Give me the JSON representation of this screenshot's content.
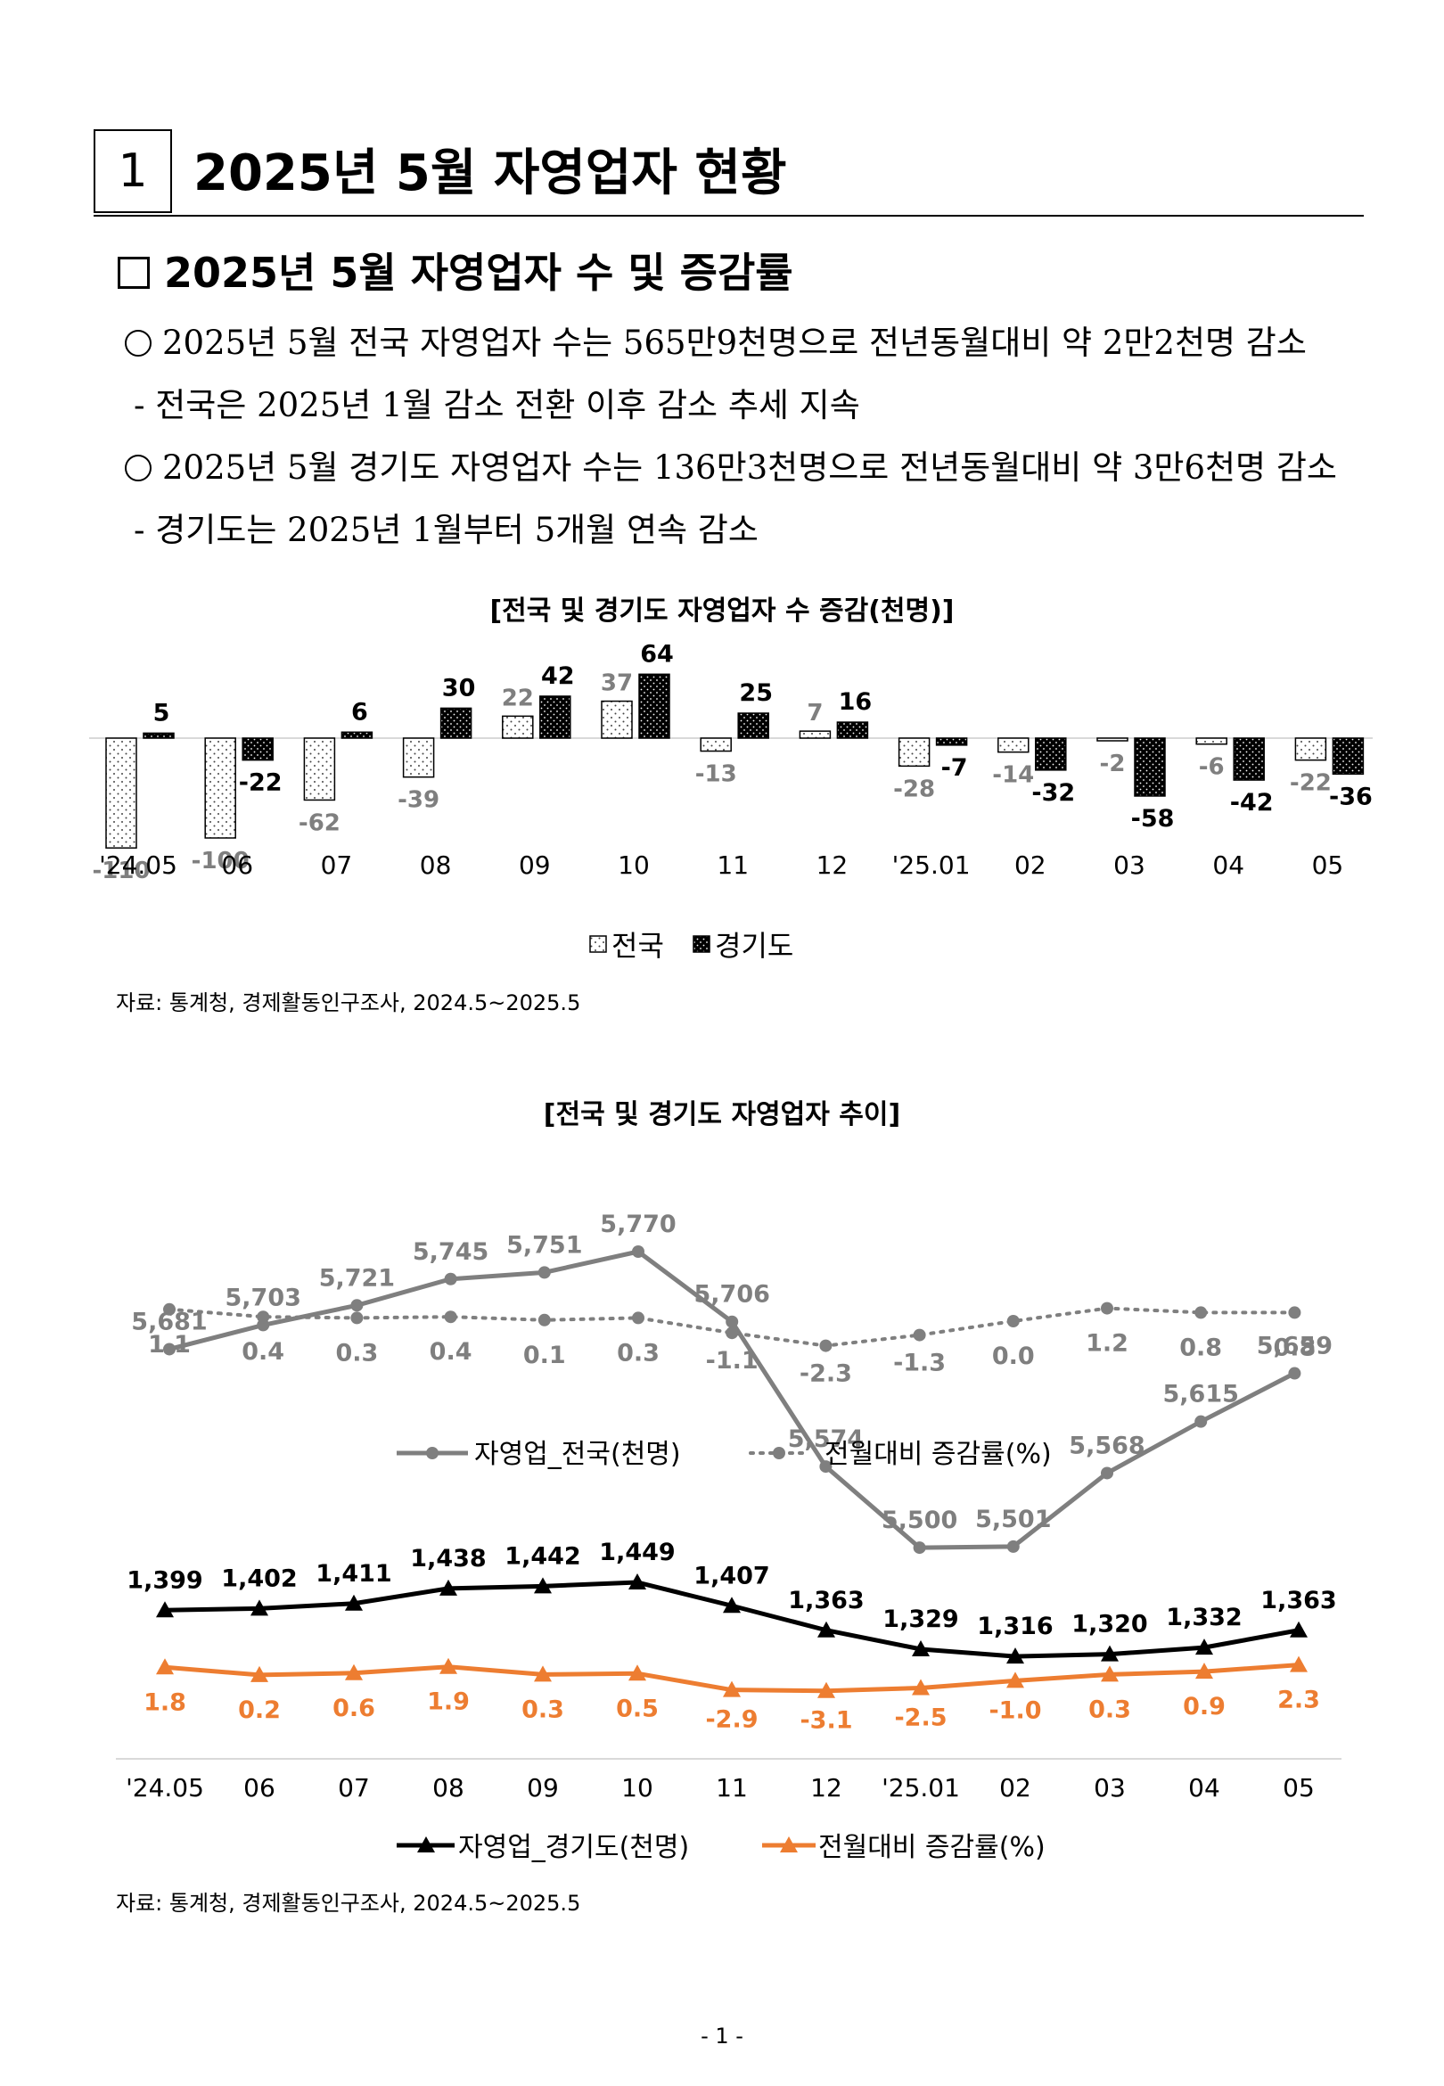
{
  "section": {
    "number": "1",
    "title": "2025년 5월 자영업자 현황"
  },
  "subheading": "2025년 5월 자영업자 수 및 증감률",
  "paragraphs": [
    "2025년 5월 전국 자영업자 수는 565만9천명으로 전년동월대비 약 2만2천명 감소",
    "- 전국은 2025년 1월 감소 전환 이후 감소 추세 지속",
    "2025년 5월 경기도 자영업자 수는 136만3천명으로 전년동월대비 약 3만6천명 감소",
    "- 경기도는 2025년 1월부터 5개월 연속 감소"
  ],
  "chart1": {
    "title": "[전국 및 경기도 자영업자 수 증감(천명)]",
    "source": "자료: 통계청, 경제활동인구조사, 2024.5~2025.5"
  },
  "chart2": {
    "title": "[전국 및 경기도 자영업자 추이]",
    "source": "자료: 통계청, 경제활동인구조사, 2024.5~2025.5"
  },
  "footer": "- 1 -",
  "chart_data": [
    {
      "type": "bar",
      "title": "[전국 및 경기도 자영업자 수 증감(천명)]",
      "categories": [
        "'24.05",
        "06",
        "07",
        "08",
        "09",
        "10",
        "11",
        "12",
        "'25.01",
        "02",
        "03",
        "04",
        "05"
      ],
      "series": [
        {
          "name": "전국",
          "values": [
            -110,
            -100,
            -62,
            -39,
            22,
            37,
            -13,
            7,
            -28,
            -14,
            -2,
            -6,
            -22
          ],
          "color": "#ffffff",
          "label_color": "#7f7f7f"
        },
        {
          "name": "경기도",
          "values": [
            5,
            -22,
            6,
            30,
            42,
            64,
            25,
            16,
            -7,
            -32,
            -58,
            -42,
            -36
          ],
          "color": "#000000",
          "label_color": "#000000"
        }
      ],
      "legend": "bottom"
    },
    {
      "type": "line",
      "categories": [
        "'24.05",
        "06",
        "07",
        "08",
        "09",
        "10",
        "11",
        "12",
        "'25.01",
        "02",
        "03",
        "04",
        "05"
      ],
      "series": [
        {
          "name": "자영업_전국(천명)",
          "values": [
            5681,
            5703,
            5721,
            5745,
            5751,
            5770,
            5706,
            5574,
            5500,
            5501,
            5568,
            5615,
            5659
          ],
          "labels": [
            "5,681",
            "5,703",
            "5,721",
            "5,745",
            "5,751",
            "5,770",
            "5,706",
            "5,574",
            "5,500",
            "5,501",
            "5,568",
            "5,615",
            "5,659"
          ],
          "color": "#7f7f7f"
        },
        {
          "name": "전월대비 증감률(%)",
          "values": [
            1.1,
            0.4,
            0.3,
            0.4,
            0.1,
            0.3,
            -1.1,
            -2.3,
            -1.3,
            0.0,
            1.2,
            0.8,
            0.8
          ],
          "labels": [
            "1.1",
            "0.4",
            "0.3",
            "0.4",
            "0.1",
            "0.3",
            "-1.1",
            "-2.3",
            "-1.3",
            "0.0",
            "1.2",
            "0.8",
            "0.8"
          ],
          "color": "#7f7f7f",
          "style": "dotted"
        }
      ],
      "legend": "bottom"
    },
    {
      "type": "line",
      "categories": [
        "'24.05",
        "06",
        "07",
        "08",
        "09",
        "10",
        "11",
        "12",
        "'25.01",
        "02",
        "03",
        "04",
        "05"
      ],
      "series": [
        {
          "name": "자영업_경기도(천명)",
          "values": [
            1399,
            1402,
            1411,
            1438,
            1442,
            1449,
            1407,
            1363,
            1329,
            1316,
            1320,
            1332,
            1363
          ],
          "labels": [
            "1,399",
            "1,402",
            "1,411",
            "1,438",
            "1,442",
            "1,449",
            "1,407",
            "1,363",
            "1,329",
            "1,316",
            "1,320",
            "1,332",
            "1,363"
          ],
          "color": "#000000"
        },
        {
          "name": "전월대비 증감률(%)",
          "values": [
            1.8,
            0.2,
            0.6,
            1.9,
            0.3,
            0.5,
            -2.9,
            -3.1,
            -2.5,
            -1.0,
            0.3,
            0.9,
            2.3
          ],
          "labels": [
            "1.8",
            "0.2",
            "0.6",
            "1.9",
            "0.3",
            "0.5",
            "-2.9",
            "-3.1",
            "-2.5",
            "-1.0",
            "0.3",
            "0.9",
            "2.3"
          ],
          "color": "#ed7d31"
        }
      ],
      "legend": "bottom"
    }
  ]
}
